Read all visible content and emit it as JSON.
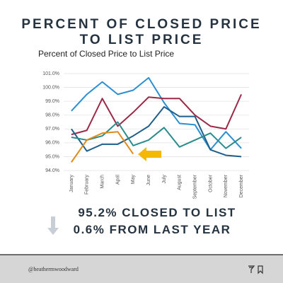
{
  "poster": {
    "title_lines": [
      "PERCENT OF CLOSED PRICE",
      "TO LIST PRICE"
    ],
    "stat_lines": [
      "95.2% CLOSED TO LIST",
      "0.6% FROM LAST YEAR"
    ],
    "handle": "@heathermwoodward"
  },
  "chart_data": {
    "type": "line",
    "title": "Percent of Closed Price to List Price",
    "categories": [
      "January",
      "February",
      "March",
      "April",
      "May",
      "June",
      "July",
      "August",
      "September",
      "October",
      "November",
      "December"
    ],
    "series": [
      {
        "color": "#2b8fd1",
        "values": [
          98.3,
          99.5,
          100.4,
          99.5,
          99.8,
          100.7,
          98.9,
          97.4,
          97.3,
          95.5,
          96.8,
          95.6
        ]
      },
      {
        "color": "#9b2a48",
        "values": [
          96.6,
          96.9,
          99.2,
          97.2,
          98.2,
          99.3,
          99.2,
          99.2,
          98.0,
          97.2,
          97.0,
          99.5
        ]
      },
      {
        "color": "#1f5f8b",
        "values": [
          97.0,
          95.4,
          95.9,
          95.9,
          96.5,
          97.2,
          98.6,
          97.9,
          97.9,
          95.5,
          95.1,
          95.0
        ]
      },
      {
        "color": "#2a8c8c",
        "values": [
          96.4,
          96.2,
          96.5,
          97.5,
          95.8,
          96.2,
          97.1,
          95.7,
          96.2,
          96.7,
          95.6,
          96.4
        ]
      },
      {
        "color": "#e08c1a",
        "values": [
          94.6,
          96.2,
          96.7,
          96.8,
          95.2,
          null,
          null,
          null,
          null,
          null,
          null,
          null
        ]
      }
    ],
    "ylim": [
      94,
      101
    ],
    "yticks": [
      {
        "value": 94,
        "label": "94.0%"
      },
      {
        "value": 95,
        "label": "95.0%"
      },
      {
        "value": 96,
        "label": "96.0%"
      },
      {
        "value": 97,
        "label": "97.0%"
      },
      {
        "value": 98,
        "label": "98.0%"
      },
      {
        "value": 99,
        "label": "99.0%"
      },
      {
        "value": 100,
        "label": "100.0%"
      },
      {
        "value": 101,
        "label": "101.0%"
      }
    ],
    "grid": true
  }
}
